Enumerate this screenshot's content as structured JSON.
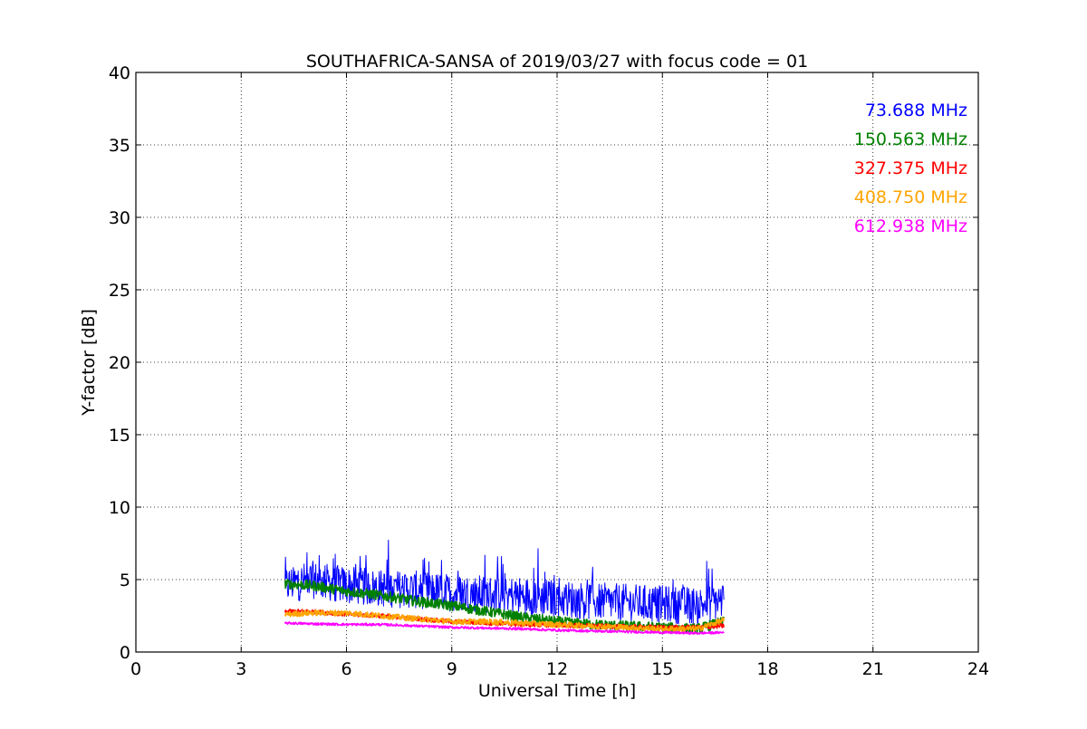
{
  "chart_data": {
    "type": "line",
    "title": "SOUTHAFRICA-SANSA of 2019/03/27 with focus code = 01",
    "xlabel": "Universal Time [h]",
    "ylabel": "Y-factor [dB]",
    "xlim": [
      0,
      24
    ],
    "ylim": [
      0,
      40
    ],
    "xticks": [
      0,
      3,
      6,
      9,
      12,
      15,
      18,
      21,
      24
    ],
    "yticks": [
      0,
      5,
      10,
      15,
      20,
      25,
      30,
      35,
      40
    ],
    "xtick_labels": [
      "0",
      "3",
      "6",
      "9",
      "12",
      "15",
      "18",
      "21",
      "24"
    ],
    "ytick_labels": [
      "0",
      "5",
      "10",
      "15",
      "20",
      "25",
      "30",
      "35",
      "40"
    ],
    "grid": true,
    "legend_position": "top-right",
    "series": [
      {
        "name": "73.688 MHz",
        "color": "#0000ff",
        "x": [
          4.25,
          5.0,
          6.0,
          7.0,
          8.0,
          9.0,
          10.0,
          11.0,
          12.0,
          13.0,
          14.0,
          15.0,
          16.0,
          16.75
        ],
        "values": [
          4.6,
          5.0,
          4.6,
          4.4,
          4.3,
          4.1,
          4.0,
          3.9,
          3.7,
          3.5,
          3.4,
          3.3,
          3.2,
          3.6
        ],
        "noise": 1.3
      },
      {
        "name": "150.563 MHz",
        "color": "#008000",
        "x": [
          4.25,
          5.0,
          6.0,
          7.0,
          8.0,
          9.0,
          10.0,
          11.0,
          12.0,
          13.0,
          14.0,
          15.0,
          16.0,
          16.75
        ],
        "values": [
          4.7,
          4.6,
          4.2,
          3.9,
          3.5,
          3.2,
          2.8,
          2.4,
          2.1,
          1.9,
          1.8,
          1.7,
          1.6,
          2.1
        ],
        "noise": 0.35
      },
      {
        "name": "327.375 MHz",
        "color": "#ff0000",
        "x": [
          4.25,
          5.0,
          6.0,
          7.0,
          8.0,
          9.0,
          10.0,
          11.0,
          12.0,
          13.0,
          14.0,
          15.0,
          16.0,
          16.75
        ],
        "values": [
          2.8,
          2.8,
          2.6,
          2.5,
          2.3,
          2.1,
          2.0,
          1.9,
          1.85,
          1.8,
          1.75,
          1.7,
          1.7,
          1.8
        ],
        "noise": 0.15
      },
      {
        "name": "408.750 MHz",
        "color": "#ffa500",
        "x": [
          4.25,
          5.0,
          6.0,
          7.0,
          8.0,
          9.0,
          10.0,
          11.0,
          12.0,
          13.0,
          14.0,
          15.0,
          16.0,
          16.75
        ],
        "values": [
          2.6,
          2.7,
          2.7,
          2.5,
          2.3,
          2.1,
          2.1,
          2.0,
          1.9,
          1.8,
          1.7,
          1.6,
          1.6,
          2.2
        ],
        "noise": 0.2
      },
      {
        "name": "612.938 MHz",
        "color": "#ff00ff",
        "x": [
          4.25,
          5.0,
          6.0,
          7.0,
          8.0,
          9.0,
          10.0,
          11.0,
          12.0,
          13.0,
          14.0,
          15.0,
          16.0,
          16.75
        ],
        "values": [
          2.0,
          1.95,
          1.9,
          1.9,
          1.8,
          1.7,
          1.65,
          1.6,
          1.5,
          1.45,
          1.4,
          1.35,
          1.3,
          1.35
        ],
        "noise": 0.08
      }
    ]
  }
}
